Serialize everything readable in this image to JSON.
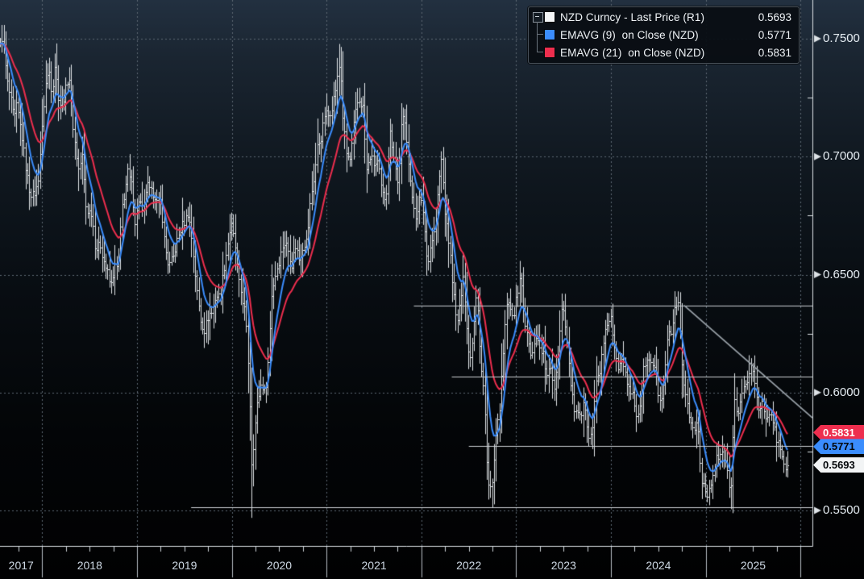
{
  "legend": {
    "collapse_icon": "minus-box-icon",
    "series": [
      {
        "label": "NZD Curncy - Last Price (R1)",
        "value": "0.5693",
        "swatch_color": "#f4f6f7"
      },
      {
        "label": "EMAVG (9)  on Close (NZD)",
        "value": "0.5771",
        "swatch_color": "#3b8dfd"
      },
      {
        "label": "EMAVG (21)  on Close (NZD)",
        "value": "0.5831",
        "swatch_color": "#ee2e4e"
      }
    ]
  },
  "y_axis": {
    "major_ticks": [
      {
        "label": "0.7500",
        "value": 0.75
      },
      {
        "label": "0.7000",
        "value": 0.7
      },
      {
        "label": "0.6500",
        "value": 0.65
      },
      {
        "label": "0.6000",
        "value": 0.6
      },
      {
        "label": "0.5500",
        "value": 0.55
      }
    ],
    "minor_tick_values": [
      0.725,
      0.675,
      0.625,
      0.575
    ]
  },
  "x_axis": {
    "year_labels": [
      "2017",
      "2018",
      "2019",
      "2020",
      "2021",
      "2022",
      "2023",
      "2024",
      "2025"
    ],
    "year_boundaries": [
      2018,
      2019,
      2020,
      2021,
      2022,
      2023,
      2024,
      2025,
      2026
    ],
    "quarter_tick_step": 0.25
  },
  "price_tags": [
    {
      "text": "0.5831",
      "value": 0.5831,
      "bg": "#ee2e4e",
      "fg": "#ffffff"
    },
    {
      "text": "0.5771",
      "value": 0.5771,
      "bg": "#3b8dfd",
      "fg": "#04070a"
    },
    {
      "text": "0.5693",
      "value": 0.5693,
      "bg": "#f2f4f5",
      "fg": "#04070a"
    }
  ],
  "colors": {
    "bars": "#e2e6e9",
    "ema9": "#3b8dfd",
    "ema21": "#ee2e4e",
    "gridline": "#5f6a74",
    "axis": "#dde2e6",
    "level_line": "#ccd1d5",
    "trendline": "#9aa2a9",
    "year_separator": "#b7bec5",
    "quarter_tick": "#cfd4d9"
  },
  "chart_data": {
    "type": "line",
    "style": "ohlc_bars_with_ema_overlays",
    "title": "NZD Curncy - Last Price with EMAVG(9) and EMAVG(21)",
    "x_domain": [
      2017.5536,
      2026.125
    ],
    "y_domain": [
      0.535,
      0.7664
    ],
    "y_gridlines": [
      0.75,
      0.7,
      0.65,
      0.6,
      0.55
    ],
    "x_gridline_years": [
      2018,
      2019,
      2020,
      2021,
      2022,
      2023,
      2024,
      2025,
      2026
    ],
    "legend_position": "top-right",
    "series": [
      {
        "name": "NZD Curncy - Last Price (R1)",
        "style": "ohlc_bars",
        "color": "#e2e6e9",
        "last_value": 0.5693,
        "close_anchors": [
          [
            2017.554,
            0.7465
          ],
          [
            2017.575,
            0.751
          ],
          [
            2017.6,
            0.7425
          ],
          [
            2017.635,
            0.7295
          ],
          [
            2017.665,
            0.7245
          ],
          [
            2017.7,
            0.7155
          ],
          [
            2017.73,
            0.722
          ],
          [
            2017.78,
            0.7095
          ],
          [
            2017.83,
            0.6935
          ],
          [
            2017.865,
            0.6855
          ],
          [
            2017.9,
            0.6835
          ],
          [
            2017.95,
            0.6875
          ],
          [
            2017.99,
            0.7085
          ],
          [
            2018.03,
            0.7305
          ],
          [
            2018.07,
            0.737
          ],
          [
            2018.1,
            0.727
          ],
          [
            2018.13,
            0.7392
          ],
          [
            2018.18,
            0.722
          ],
          [
            2018.23,
            0.7255
          ],
          [
            2018.28,
            0.7355
          ],
          [
            2018.33,
            0.7095
          ],
          [
            2018.38,
            0.6945
          ],
          [
            2018.42,
            0.7005
          ],
          [
            2018.46,
            0.6775
          ],
          [
            2018.52,
            0.6765
          ],
          [
            2018.56,
            0.6605
          ],
          [
            2018.61,
            0.663
          ],
          [
            2018.645,
            0.6565
          ],
          [
            2018.69,
            0.6505
          ],
          [
            2018.72,
            0.6445
          ],
          [
            2018.76,
            0.6535
          ],
          [
            2018.8,
            0.6525
          ],
          [
            2018.835,
            0.6775
          ],
          [
            2018.87,
            0.6855
          ],
          [
            2018.9,
            0.6935
          ],
          [
            2018.94,
            0.6875
          ],
          [
            2018.98,
            0.6715
          ],
          [
            2019.02,
            0.6835
          ],
          [
            2019.06,
            0.6745
          ],
          [
            2019.1,
            0.6885
          ],
          [
            2019.14,
            0.6845
          ],
          [
            2019.18,
            0.685
          ],
          [
            2019.22,
            0.6785
          ],
          [
            2019.25,
            0.6815
          ],
          [
            2019.29,
            0.6625
          ],
          [
            2019.33,
            0.6535
          ],
          [
            2019.38,
            0.6575
          ],
          [
            2019.42,
            0.6645
          ],
          [
            2019.46,
            0.6695
          ],
          [
            2019.54,
            0.6765
          ],
          [
            2019.58,
            0.6635
          ],
          [
            2019.63,
            0.6425
          ],
          [
            2019.67,
            0.6305
          ],
          [
            2019.71,
            0.6265
          ],
          [
            2019.755,
            0.6335
          ],
          [
            2019.79,
            0.634
          ],
          [
            2019.83,
            0.6415
          ],
          [
            2019.87,
            0.6405
          ],
          [
            2019.94,
            0.6595
          ],
          [
            2019.99,
            0.6715
          ],
          [
            2020.03,
            0.6635
          ],
          [
            2020.07,
            0.6465
          ],
          [
            2020.1,
            0.6415
          ],
          [
            2020.14,
            0.6335
          ],
          [
            2020.18,
            0.6055
          ],
          [
            2020.21,
            0.5675
          ],
          [
            2020.235,
            0.583
          ],
          [
            2020.27,
            0.5965
          ],
          [
            2020.31,
            0.6045
          ],
          [
            2020.35,
            0.5995
          ],
          [
            2020.38,
            0.6125
          ],
          [
            2020.42,
            0.6425
          ],
          [
            2020.46,
            0.6505
          ],
          [
            2020.5,
            0.6565
          ],
          [
            2020.54,
            0.6635
          ],
          [
            2020.58,
            0.6625
          ],
          [
            2020.63,
            0.6545
          ],
          [
            2020.67,
            0.6625
          ],
          [
            2020.71,
            0.6565
          ],
          [
            2020.75,
            0.6625
          ],
          [
            2020.79,
            0.6645
          ],
          [
            2020.83,
            0.6825
          ],
          [
            2020.87,
            0.6925
          ],
          [
            2020.9,
            0.7045
          ],
          [
            2020.94,
            0.7085
          ],
          [
            2020.98,
            0.7185
          ],
          [
            2021.02,
            0.7175
          ],
          [
            2021.06,
            0.7225
          ],
          [
            2021.1,
            0.7305
          ],
          [
            2021.14,
            0.7405
          ],
          [
            2021.17,
            0.7165
          ],
          [
            2021.21,
            0.7005
          ],
          [
            2021.25,
            0.6985
          ],
          [
            2021.29,
            0.7155
          ],
          [
            2021.33,
            0.7245
          ],
          [
            2021.38,
            0.7215
          ],
          [
            2021.42,
            0.6935
          ],
          [
            2021.46,
            0.7005
          ],
          [
            2021.5,
            0.6965
          ],
          [
            2021.54,
            0.6975
          ],
          [
            2021.58,
            0.6845
          ],
          [
            2021.625,
            0.6825
          ],
          [
            2021.67,
            0.7105
          ],
          [
            2021.71,
            0.7005
          ],
          [
            2021.75,
            0.6875
          ],
          [
            2021.79,
            0.7165
          ],
          [
            2021.83,
            0.7135
          ],
          [
            2021.87,
            0.6945
          ],
          [
            2021.9,
            0.6815
          ],
          [
            2021.94,
            0.675
          ],
          [
            2021.98,
            0.6825
          ],
          [
            2022.02,
            0.6765
          ],
          [
            2022.06,
            0.6545
          ],
          [
            2022.1,
            0.6635
          ],
          [
            2022.14,
            0.669
          ],
          [
            2022.18,
            0.6885
          ],
          [
            2022.21,
            0.6995
          ],
          [
            2022.25,
            0.6745
          ],
          [
            2022.29,
            0.663
          ],
          [
            2022.33,
            0.6455
          ],
          [
            2022.37,
            0.6285
          ],
          [
            2022.4,
            0.6355
          ],
          [
            2022.44,
            0.6515
          ],
          [
            2022.47,
            0.6295
          ],
          [
            2022.51,
            0.6135
          ],
          [
            2022.54,
            0.6245
          ],
          [
            2022.58,
            0.6455
          ],
          [
            2022.62,
            0.6125
          ],
          [
            2022.66,
            0.5985
          ],
          [
            2022.7,
            0.5615
          ],
          [
            2022.74,
            0.5585
          ],
          [
            2022.78,
            0.5785
          ],
          [
            2022.82,
            0.5925
          ],
          [
            2022.86,
            0.6155
          ],
          [
            2022.9,
            0.6385
          ],
          [
            2022.94,
            0.6345
          ],
          [
            2022.98,
            0.6345
          ],
          [
            2023.04,
            0.6505
          ],
          [
            2023.08,
            0.6325
          ],
          [
            2023.12,
            0.6225
          ],
          [
            2023.16,
            0.6135
          ],
          [
            2023.2,
            0.6255
          ],
          [
            2023.24,
            0.6195
          ],
          [
            2023.28,
            0.6175
          ],
          [
            2023.32,
            0.6065
          ],
          [
            2023.36,
            0.6105
          ],
          [
            2023.4,
            0.6025
          ],
          [
            2023.44,
            0.6165
          ],
          [
            2023.48,
            0.6385
          ],
          [
            2023.52,
            0.6285
          ],
          [
            2023.56,
            0.6085
          ],
          [
            2023.6,
            0.5945
          ],
          [
            2023.64,
            0.5905
          ],
          [
            2023.68,
            0.5885
          ],
          [
            2023.72,
            0.5965
          ],
          [
            2023.76,
            0.5825
          ],
          [
            2023.8,
            0.5835
          ],
          [
            2023.84,
            0.6045
          ],
          [
            2023.88,
            0.6095
          ],
          [
            2023.92,
            0.6205
          ],
          [
            2023.96,
            0.6305
          ],
          [
            2023.995,
            0.6315
          ],
          [
            2024.03,
            0.6185
          ],
          [
            2024.07,
            0.6105
          ],
          [
            2024.11,
            0.6165
          ],
          [
            2024.15,
            0.6095
          ],
          [
            2024.19,
            0.6005
          ],
          [
            2024.23,
            0.5985
          ],
          [
            2024.27,
            0.5895
          ],
          [
            2024.31,
            0.5965
          ],
          [
            2024.35,
            0.6125
          ],
          [
            2024.39,
            0.6135
          ],
          [
            2024.43,
            0.6125
          ],
          [
            2024.47,
            0.6085
          ],
          [
            2024.51,
            0.5955
          ],
          [
            2024.55,
            0.5995
          ],
          [
            2024.6,
            0.6245
          ],
          [
            2024.63,
            0.6245
          ],
          [
            2024.67,
            0.6345
          ],
          [
            2024.71,
            0.6365
          ],
          [
            2024.75,
            0.6085
          ],
          [
            2024.79,
            0.5985
          ],
          [
            2024.83,
            0.5885
          ],
          [
            2024.87,
            0.5835
          ],
          [
            2024.91,
            0.5885
          ],
          [
            2024.95,
            0.5645
          ],
          [
            2024.99,
            0.5595
          ],
          [
            2025.03,
            0.5565
          ],
          [
            2025.07,
            0.5655
          ],
          [
            2025.11,
            0.5735
          ],
          [
            2025.15,
            0.5725
          ],
          [
            2025.19,
            0.5735
          ],
          [
            2025.23,
            0.5655
          ],
          [
            2025.26,
            0.5565
          ],
          [
            2025.3,
            0.5955
          ],
          [
            2025.34,
            0.5925
          ],
          [
            2025.38,
            0.5985
          ],
          [
            2025.42,
            0.6045
          ],
          [
            2025.46,
            0.6065
          ],
          [
            2025.5,
            0.6105
          ],
          [
            2025.53,
            0.6005
          ],
          [
            2025.56,
            0.592
          ],
          [
            2025.6,
            0.5955
          ],
          [
            2025.63,
            0.589
          ],
          [
            2025.66,
            0.588
          ],
          [
            2025.69,
            0.5925
          ],
          [
            2025.72,
            0.587
          ],
          [
            2025.74,
            0.5772
          ],
          [
            2025.77,
            0.5795
          ],
          [
            2025.8,
            0.5735
          ],
          [
            2025.83,
            0.5695
          ],
          [
            2025.86,
            0.5693
          ]
        ]
      },
      {
        "name": "EMAVG (9) on Close (NZD)",
        "style": "line",
        "color": "#3b8dfd",
        "derived": "ema",
        "period": 9,
        "last_value": 0.5771
      },
      {
        "name": "EMAVG (21) on Close (NZD)",
        "style": "line",
        "color": "#ee2e4e",
        "derived": "ema",
        "period": 21,
        "last_value": 0.5831
      }
    ],
    "wick_extremes": [
      {
        "t": 2017.575,
        "price": 0.7558,
        "type": "high"
      },
      {
        "t": 2019.755,
        "price": 0.6204,
        "type": "low"
      },
      {
        "t": 2020.215,
        "price": 0.5469,
        "type": "low"
      },
      {
        "t": 2021.15,
        "price": 0.7465,
        "type": "high"
      },
      {
        "t": 2022.755,
        "price": 0.5512,
        "type": "low"
      },
      {
        "t": 2024.745,
        "price": 0.6379,
        "type": "high"
      },
      {
        "t": 2025.27,
        "price": 0.5506,
        "type": "low"
      }
    ],
    "annotations": {
      "horizontal_lines": [
        {
          "value": 0.637,
          "t_start": 2021.92,
          "t_end": 2026.125
        },
        {
          "value": 0.6069,
          "t_start": 2022.32,
          "t_end": 2026.125
        },
        {
          "value": 0.5774,
          "t_start": 2022.5,
          "t_end": 2026.125
        },
        {
          "value": 0.5514,
          "t_start": 2019.57,
          "t_end": 2026.125
        }
      ],
      "trendlines": [
        {
          "t_start": 2024.77,
          "v_start": 0.637,
          "t_end": 2026.125,
          "v_end": 0.5893
        }
      ]
    }
  }
}
